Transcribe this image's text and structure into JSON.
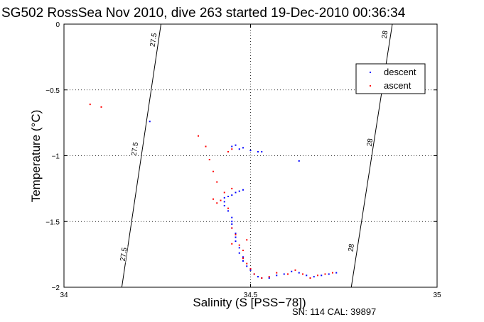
{
  "chart_data": {
    "type": "scatter",
    "title": "SG502 RossSea Nov 2010, dive 263 started 19-Dec-2010 00:36:34",
    "xlabel": "Salinity (S [PSS−78])",
    "ylabel": "Temperature (°C)",
    "xlim": [
      34,
      35
    ],
    "ylim": [
      -2,
      0
    ],
    "xticks": [
      "34",
      "34.5",
      "35"
    ],
    "yticks": [
      "0",
      "−0.5",
      "−1",
      "−1.5",
      "−2"
    ],
    "xtick_values": [
      34,
      34.5,
      35
    ],
    "ytick_values": [
      0,
      -0.5,
      -1,
      -1.5,
      -2
    ],
    "grid": true,
    "legend_position": "top-right",
    "footer": "SN: 114  CAL: 39897",
    "series": [
      {
        "name": "descent",
        "color": "#0000ff",
        "points": [
          [
            34.23,
            -0.74
          ],
          [
            34.45,
            -0.93
          ],
          [
            34.46,
            -0.92
          ],
          [
            34.47,
            -0.95
          ],
          [
            34.48,
            -0.94
          ],
          [
            34.5,
            -0.96
          ],
          [
            34.52,
            -0.97
          ],
          [
            34.53,
            -0.97
          ],
          [
            34.63,
            -1.04
          ],
          [
            34.48,
            -1.26
          ],
          [
            34.47,
            -1.27
          ],
          [
            34.46,
            -1.28
          ],
          [
            34.45,
            -1.3
          ],
          [
            34.44,
            -1.31
          ],
          [
            34.43,
            -1.32
          ],
          [
            34.43,
            -1.35
          ],
          [
            34.43,
            -1.38
          ],
          [
            34.44,
            -1.42
          ],
          [
            34.45,
            -1.47
          ],
          [
            34.45,
            -1.5
          ],
          [
            34.45,
            -1.52
          ],
          [
            34.45,
            -1.55
          ],
          [
            34.46,
            -1.59
          ],
          [
            34.46,
            -1.62
          ],
          [
            34.46,
            -1.65
          ],
          [
            34.47,
            -1.7
          ],
          [
            34.47,
            -1.74
          ],
          [
            34.48,
            -1.77
          ],
          [
            34.48,
            -1.8
          ],
          [
            34.49,
            -1.84
          ],
          [
            34.5,
            -1.87
          ],
          [
            34.51,
            -1.9
          ],
          [
            34.52,
            -1.92
          ],
          [
            34.53,
            -1.93
          ],
          [
            34.55,
            -1.93
          ],
          [
            34.57,
            -1.91
          ],
          [
            34.59,
            -1.9
          ],
          [
            34.61,
            -1.88
          ],
          [
            34.63,
            -1.89
          ],
          [
            34.65,
            -1.91
          ],
          [
            34.67,
            -1.92
          ],
          [
            34.69,
            -1.91
          ],
          [
            34.71,
            -1.9
          ],
          [
            34.73,
            -1.89
          ]
        ]
      },
      {
        "name": "ascent",
        "color": "#ff0000",
        "points": [
          [
            34.07,
            -0.61
          ],
          [
            34.1,
            -0.63
          ],
          [
            34.36,
            -0.85
          ],
          [
            34.38,
            -0.93
          ],
          [
            34.39,
            -1.03
          ],
          [
            34.4,
            -1.12
          ],
          [
            34.41,
            -1.2
          ],
          [
            34.4,
            -1.33
          ],
          [
            34.41,
            -1.36
          ],
          [
            34.42,
            -1.34
          ],
          [
            34.43,
            -1.28
          ],
          [
            34.45,
            -1.25
          ],
          [
            34.44,
            -1.4
          ],
          [
            34.45,
            -1.55
          ],
          [
            34.46,
            -1.6
          ],
          [
            34.45,
            -1.67
          ],
          [
            34.47,
            -1.68
          ],
          [
            34.48,
            -1.72
          ],
          [
            34.49,
            -1.64
          ],
          [
            34.48,
            -1.78
          ],
          [
            34.49,
            -1.82
          ],
          [
            34.5,
            -1.86
          ],
          [
            34.51,
            -1.9
          ],
          [
            34.53,
            -1.93
          ],
          [
            34.55,
            -1.92
          ],
          [
            34.57,
            -1.89
          ],
          [
            34.6,
            -1.9
          ],
          [
            34.62,
            -1.87
          ],
          [
            34.64,
            -1.9
          ],
          [
            34.66,
            -1.93
          ],
          [
            34.68,
            -1.91
          ],
          [
            34.7,
            -1.9
          ],
          [
            34.72,
            -1.89
          ],
          [
            34.45,
            -0.95
          ],
          [
            34.44,
            -0.97
          ]
        ]
      }
    ],
    "contours": [
      {
        "label": "27.5",
        "color": "#000000",
        "line": [
          [
            34.155,
            -2
          ],
          [
            34.26,
            0
          ]
        ],
        "labels_at": [
          [
            34.16,
            -1.75
          ],
          [
            34.19,
            -0.95
          ],
          [
            34.24,
            -0.12
          ]
        ]
      },
      {
        "label": "28",
        "color": "#000000",
        "line": [
          [
            34.77,
            -2
          ],
          [
            34.88,
            0
          ]
        ],
        "labels_at": [
          [
            34.77,
            -1.7
          ],
          [
            34.82,
            -0.9
          ],
          [
            34.86,
            -0.08
          ]
        ]
      }
    ]
  }
}
